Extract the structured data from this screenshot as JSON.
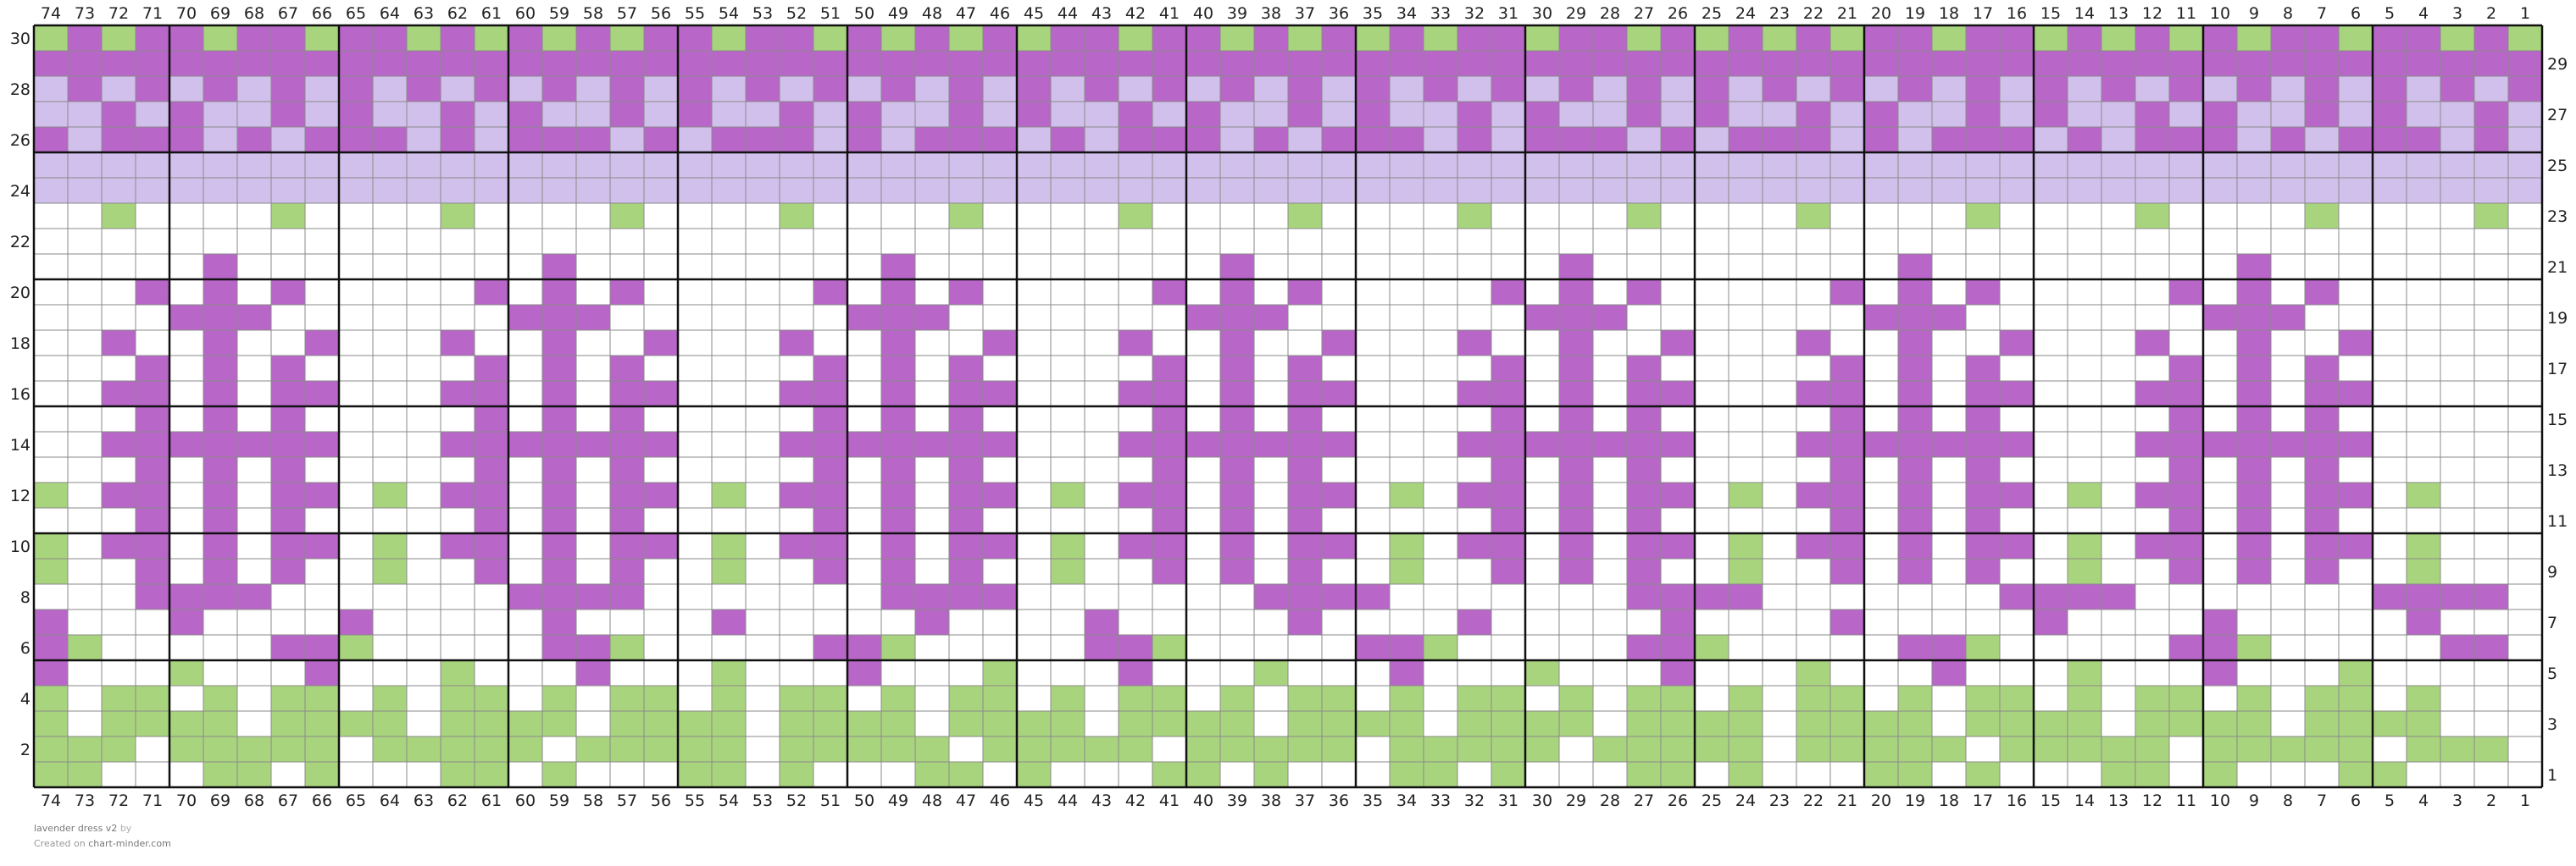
{
  "chart": {
    "columns": 74,
    "rows": 30,
    "palette": {
      "bg": "#ffffff",
      "purple": "#b866c8",
      "lavender": "#d2c0ec",
      "green": "#a9d47e",
      "grid_line": "#8a8a8a",
      "major_line": "#111111"
    },
    "cells": {
      "rows": {
        "30": "GPGPPGPPGPPGPGPGPGPPGPPGPGPGPGPPGPPGPGPGPGPPGPPGPGPGPGPPGPPGPGPGPGPPGPPGPG",
        "29": "PPPPPPPPPPPPPPPPPPPPPPPPPPPPPPPPPPPPPPPPPPPPPPPPPPPPPPPPPPPPPPPPPPPPPPPPPP",
        "28": "LPLPLPLPLPLPLPLPLPLPLPLPLPLPLPLPLPLPLPLPLPLPLPLPLPLPLPLPLPLPLPLPLPLPLPLPLP",
        "27": "LLPLPLLPLPLLPLPLLPLPLLPLPLLPLPLLPLPLLPLPLLPLPLLPLPLLPLPLLPLPLLPLPLLPLPLLPL",
        "26": "PLPPPLPLPPPLPLPPPLPLPPPLPLPPPLPLPPPLPLPPPLPLPPPLPLPPPLPLPPPLPLPPPLPLPPPLPL",
        "25": "LLLLLLLLLLLLLLLLLLLLLLLLLLLLLLLLLLLLLLLLLLLLLLLLLLLLLLLLLLLLLLLLLLLLLLLLLL",
        "24": "LLLLLLLLLLLLLLLLLLLLLLLLLLLLLLLLLLLLLLLLLLLLLLLLLLLLLLLLLLLLLLLLLLLLLLLLLL",
        "23": "..G....G....G....G....G....G....G....G....G....G....G....G....G....G....G.",
        "22": "..........................................................................",
        "21": ".....P.........P.........P.........P.........P.........P.........P.......",
        "20": "...P.P.P.....P.P.P.....P.P.P.....P.P.P.....P.P.P.....P.P.P.....P.P.P.....",
        "19": "....PPP.......PPP.......PPP.......PPP.......PPP.......PPP.......PPP.......",
        "18": "..P..P..P...P..P..P...P..P..P...P..P..P...P..P..P...P..P..P...P..P..P.....",
        "17": "...P.P.P.....P.P.P.....P.P.P.....P.P.P.....P.P.P.....P.P.P.....P.P.P......",
        "16": "..PP.P.PP...PP.P.PP...PP.P.PP...PP.P.PP...PP.P.PP...PP.P.PP...PP.P.PP.....",
        "15": "...P.P.P.....P.P.P.....P.P.P.....P.P.P.....P.P.P.....P.P.P.....P.P.P.....",
        "14": "..PPPPPPP...PPPPPPP...PPPPPPP...PPPPPPP...PPPPPPP...PPPPPPP...PPPPPPP.....",
        "13": "...P.P.P.....P.P.P.....P.P.P.....P.P.P.....P.P.P.....P.P.P.....P.P.P.....",
        "12": "G.PP.P.PP.G.PP.P.PP.G.PP.P.PP.G.PP.P.PP.G.PP.P.PP.G.PP.P.PP.G.PP.P.PP.G.",
        "11": "...P.P.P.....P.P.P.....P.P.P.....P.P.P.....P.P.P.....P.P.P.....P.P.P.....",
        "10": "G.PP.P.PP.G.PP.P.PP.G.PP.P.PP.G.PP.P.PP.G.PP.P.PP.G.PP.P.PP.G.PP.P.PP.G.",
        "9": "G..P.P.P..G..P.P.P..G..P.P.P..G..P.P.P..G..P.P.P..G..P.P.P..G..P.P.P..G.",
        "8": "...PPPP.......PPPP.......PPPP.......PPPP.......PPPP.......PPPP.......PPPP",
        "7": "P...P....P.....P....P.....P....P.....P....P.....P....P.....P....P.....P..",
        "6": "PG.....PPG.....PPG.....PPG.....PPG.....PPG.....PPG.....PPG.....PPG.....PP",
        "5": "P...G...P...G...P...G...P...G...P...G...P...G...P...G...P...G...P...G....",
        "4": "G.GG.G.GG.G.GG.G.GG.G.GG.G.GG.G.GG.G.GG.G.GG.G.GG.G.GG.G.GG.G.GG.G.GG.G.",
        "3": "G.GGGG.GGGG.GGGG.GGGG.GGGG.GGGG.GGGG.GGGG.GGGG.GGGG.GGGG.GGGG.GGGG.GGGG..",
        "2": "GGG.GGGGG.GGGGG.GGGGG.GGGGG.GGGGG.GGGGG.GGGGG.GGGGG.GGGGG.GGGGG.GGGGG.GGG",
        "1": "GG...GG.G...GG.G...GG.G...GG.G...GG.G...GG.G...GG.G...GG.G...GG.G...GG.."
      },
      "legend": {
        ".": "bg",
        "P": "purple",
        "L": "lavender",
        "G": "green"
      }
    }
  },
  "footer": {
    "title": "lavender dress v2",
    "by": "by",
    "created_prefix": "Created on",
    "site": "chart-minder.com"
  }
}
